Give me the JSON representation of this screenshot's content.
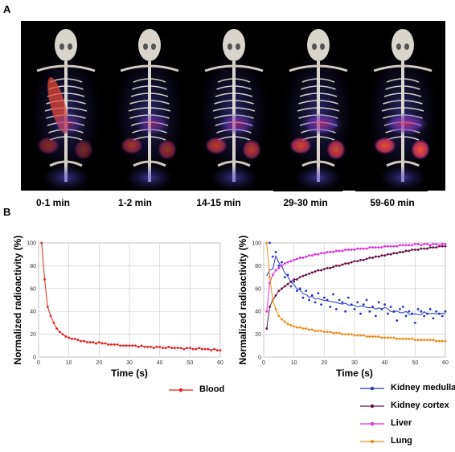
{
  "panel_a_label": "A",
  "panel_b_label": "B",
  "time_points": [
    "0-1 min",
    "1-2 min",
    "14-15 min",
    "29-30 min",
    "59-60 min"
  ],
  "chart_data": [
    {
      "type": "line",
      "xlabel": "Time (s)",
      "ylabel": "Normalized radioactivity (%)",
      "xlim": [
        0,
        60
      ],
      "ylim": [
        0,
        100
      ],
      "xticks": [
        0,
        10,
        20,
        30,
        40,
        50,
        60
      ],
      "yticks": [
        0,
        20,
        40,
        60,
        80,
        100
      ],
      "grid": true,
      "legend": "below",
      "series": [
        {
          "name": "Blood",
          "color": "#e8211f",
          "x": [
            1,
            2,
            3,
            4,
            5,
            6,
            7,
            8,
            9,
            10,
            11,
            12,
            13,
            14,
            15,
            16,
            17,
            18,
            19,
            20,
            21,
            22,
            23,
            24,
            25,
            26,
            27,
            28,
            29,
            30,
            31,
            32,
            33,
            34,
            35,
            36,
            37,
            38,
            39,
            40,
            41,
            42,
            43,
            44,
            45,
            46,
            47,
            48,
            49,
            50,
            51,
            52,
            53,
            54,
            55,
            56,
            57,
            58,
            59,
            60
          ],
          "values": [
            100,
            68,
            44,
            36,
            30,
            25,
            22,
            20,
            18,
            17,
            16,
            16,
            15,
            14,
            14,
            13,
            13,
            13,
            12,
            13,
            12,
            12,
            11,
            11,
            11,
            11,
            10,
            10,
            10,
            10,
            10,
            10,
            9,
            10,
            9,
            9,
            9,
            8,
            9,
            9,
            8,
            8,
            9,
            8,
            8,
            8,
            8,
            7,
            8,
            8,
            7,
            7,
            8,
            7,
            7,
            7,
            6,
            7,
            6,
            6
          ]
        }
      ]
    },
    {
      "type": "line",
      "xlabel": "Time (s)",
      "ylabel": "Normalized radioactivity (%)",
      "xlim": [
        0,
        60
      ],
      "ylim": [
        0,
        100
      ],
      "xticks": [
        0,
        10,
        20,
        30,
        40,
        50,
        60
      ],
      "yticks": [
        0,
        20,
        40,
        60,
        80,
        100
      ],
      "grid": true,
      "legend": "below",
      "series": [
        {
          "name": "Kidney medulla",
          "color": "#2232c8",
          "x": [
            1,
            2,
            3,
            4,
            5,
            6,
            7,
            8,
            9,
            10,
            11,
            12,
            13,
            14,
            15,
            16,
            17,
            18,
            19,
            20,
            21,
            22,
            23,
            24,
            25,
            26,
            27,
            28,
            29,
            30,
            31,
            32,
            33,
            34,
            35,
            36,
            37,
            38,
            39,
            40,
            41,
            42,
            43,
            44,
            45,
            46,
            47,
            48,
            49,
            50,
            51,
            52,
            53,
            54,
            55,
            56,
            57,
            58,
            59,
            60
          ],
          "values": [
            25,
            100,
            88,
            92,
            80,
            83,
            70,
            72,
            62,
            66,
            58,
            60,
            52,
            58,
            50,
            54,
            48,
            56,
            46,
            52,
            50,
            44,
            55,
            42,
            50,
            48,
            40,
            52,
            46,
            42,
            48,
            38,
            46,
            50,
            40,
            44,
            36,
            48,
            42,
            46,
            38,
            44,
            40,
            32,
            42,
            44,
            36,
            40,
            38,
            30,
            42,
            40,
            36,
            38,
            42,
            34,
            40,
            38,
            36,
            40
          ]
        },
        {
          "name": "Kidney cortex",
          "color": "#6b1045",
          "x": [
            1,
            2,
            3,
            4,
            5,
            6,
            7,
            8,
            9,
            10,
            11,
            12,
            13,
            14,
            15,
            16,
            17,
            18,
            19,
            20,
            21,
            22,
            23,
            24,
            25,
            26,
            27,
            28,
            29,
            30,
            31,
            32,
            33,
            34,
            35,
            36,
            37,
            38,
            39,
            40,
            41,
            42,
            43,
            44,
            45,
            46,
            47,
            48,
            49,
            50,
            51,
            52,
            53,
            54,
            55,
            56,
            57,
            58,
            59,
            60
          ],
          "values": [
            25,
            44,
            50,
            54,
            58,
            60,
            62,
            64,
            66,
            68,
            68,
            70,
            71,
            72,
            73,
            74,
            75,
            76,
            76,
            77,
            78,
            78,
            79,
            80,
            80,
            81,
            82,
            82,
            83,
            84,
            84,
            85,
            85,
            86,
            87,
            87,
            88,
            88,
            89,
            89,
            90,
            90,
            91,
            91,
            92,
            92,
            93,
            93,
            94,
            94,
            94,
            95,
            95,
            95,
            96,
            96,
            96,
            97,
            97,
            97
          ]
        },
        {
          "name": "Liver",
          "color": "#df2fdf",
          "x": [
            1,
            2,
            3,
            4,
            5,
            6,
            7,
            8,
            9,
            10,
            11,
            12,
            13,
            14,
            15,
            16,
            17,
            18,
            19,
            20,
            21,
            22,
            23,
            24,
            25,
            26,
            27,
            28,
            29,
            30,
            31,
            32,
            33,
            34,
            35,
            36,
            37,
            38,
            39,
            40,
            41,
            42,
            43,
            44,
            45,
            46,
            47,
            48,
            49,
            50,
            51,
            52,
            53,
            54,
            55,
            56,
            57,
            58,
            59,
            60
          ],
          "values": [
            40,
            65,
            72,
            76,
            78,
            80,
            82,
            83,
            84,
            85,
            86,
            87,
            87,
            88,
            89,
            89,
            90,
            90,
            91,
            91,
            92,
            92,
            92,
            93,
            93,
            93,
            94,
            94,
            94,
            94,
            95,
            95,
            95,
            95,
            96,
            96,
            96,
            96,
            96,
            97,
            97,
            97,
            97,
            97,
            98,
            98,
            98,
            98,
            98,
            99,
            99,
            98,
            99,
            99,
            98,
            99,
            99,
            98,
            99,
            99
          ]
        },
        {
          "name": "Lung",
          "color": "#f28a16",
          "x": [
            1,
            2,
            3,
            4,
            5,
            6,
            7,
            8,
            9,
            10,
            11,
            12,
            13,
            14,
            15,
            16,
            17,
            18,
            19,
            20,
            21,
            22,
            23,
            24,
            25,
            26,
            27,
            28,
            29,
            30,
            31,
            32,
            33,
            34,
            35,
            36,
            37,
            38,
            39,
            40,
            41,
            42,
            43,
            44,
            45,
            46,
            47,
            48,
            49,
            50,
            51,
            52,
            53,
            54,
            55,
            56,
            57,
            58,
            59,
            60
          ],
          "values": [
            100,
            70,
            50,
            42,
            36,
            33,
            31,
            29,
            28,
            27,
            26,
            26,
            25,
            25,
            24,
            24,
            23,
            23,
            23,
            22,
            22,
            22,
            21,
            21,
            21,
            20,
            20,
            20,
            20,
            19,
            19,
            19,
            19,
            18,
            18,
            18,
            18,
            18,
            17,
            17,
            17,
            17,
            17,
            16,
            16,
            16,
            16,
            16,
            16,
            15,
            15,
            15,
            15,
            15,
            15,
            15,
            14,
            14,
            14,
            14
          ]
        }
      ]
    }
  ]
}
